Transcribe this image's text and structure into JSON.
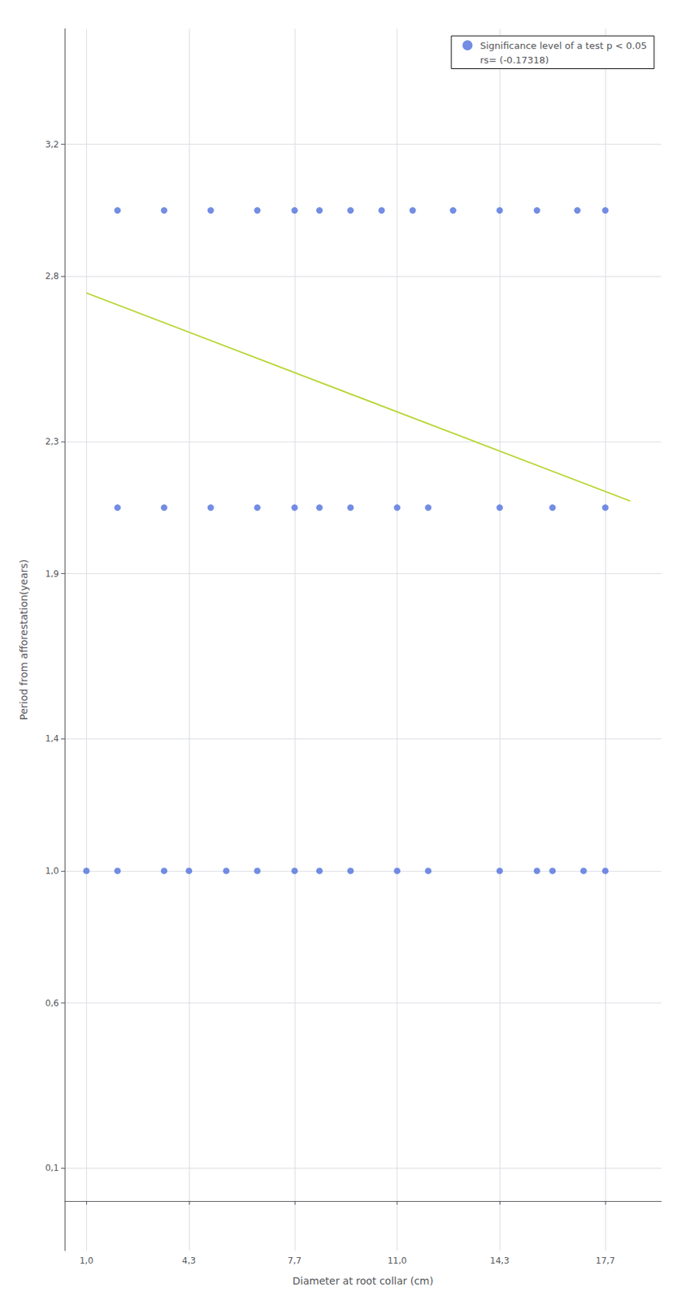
{
  "chart_data": {
    "type": "scatter",
    "xlabel": "Diameter at root collar (cm)",
    "ylabel": "Period from afforestation(years)",
    "series": [
      {
        "name": "Significance level of a test p < 0.05",
        "type": "scatter",
        "x": [
          2.0,
          3.5,
          5.0,
          6.5,
          7.7,
          8.5,
          9.5,
          10.5,
          11.5,
          12.8,
          14.3,
          15.5,
          16.8,
          17.7,
          2.0,
          3.5,
          5.0,
          6.5,
          7.7,
          8.5,
          9.5,
          11.0,
          12.0,
          14.3,
          16.0,
          17.7,
          1.0,
          2.0,
          3.5,
          4.3,
          5.5,
          6.5,
          7.7,
          8.5,
          9.5,
          11.0,
          12.0,
          14.3,
          15.5,
          16.0,
          17.0,
          17.7
        ],
        "values": [
          3.0,
          3.0,
          3.0,
          3.0,
          3.0,
          3.0,
          3.0,
          3.0,
          3.0,
          3.0,
          3.0,
          3.0,
          3.0,
          3.0,
          2.1,
          2.1,
          2.1,
          2.1,
          2.1,
          2.1,
          2.1,
          2.1,
          2.1,
          2.1,
          2.1,
          2.1,
          1.0,
          1.0,
          1.0,
          1.0,
          1.0,
          1.0,
          1.0,
          1.0,
          1.0,
          1.0,
          1.0,
          1.0,
          1.0,
          1.0,
          1.0,
          1.0
        ]
      },
      {
        "type": "line",
        "x": [
          1.0,
          18.5
        ],
        "values": [
          2.75,
          2.12
        ]
      }
    ],
    "annotations": [
      "rs= (-0.17318)"
    ],
    "xlim": [
      0.3,
      19.5
    ],
    "ylim": [
      -0.15,
      3.55
    ],
    "xticks": [
      {
        "value": 1.0,
        "label": "1,0"
      },
      {
        "value": 4.3,
        "label": "4,3"
      },
      {
        "value": 7.7,
        "label": "7,7"
      },
      {
        "value": 11.0,
        "label": "11,0"
      },
      {
        "value": 14.3,
        "label": "14,3"
      },
      {
        "value": 17.7,
        "label": "17,7"
      }
    ],
    "yticks": [
      {
        "value": 0.1,
        "label": "0,1"
      },
      {
        "value": 0.6,
        "label": "0,6"
      },
      {
        "value": 1.0,
        "label": "1,0"
      },
      {
        "value": 1.4,
        "label": "1,4"
      },
      {
        "value": 1.9,
        "label": "1,9"
      },
      {
        "value": 2.3,
        "label": "2,3"
      },
      {
        "value": 2.8,
        "label": "2,8"
      },
      {
        "value": 3.2,
        "label": "3,2"
      }
    ],
    "grid": true,
    "legend": "upper right"
  }
}
